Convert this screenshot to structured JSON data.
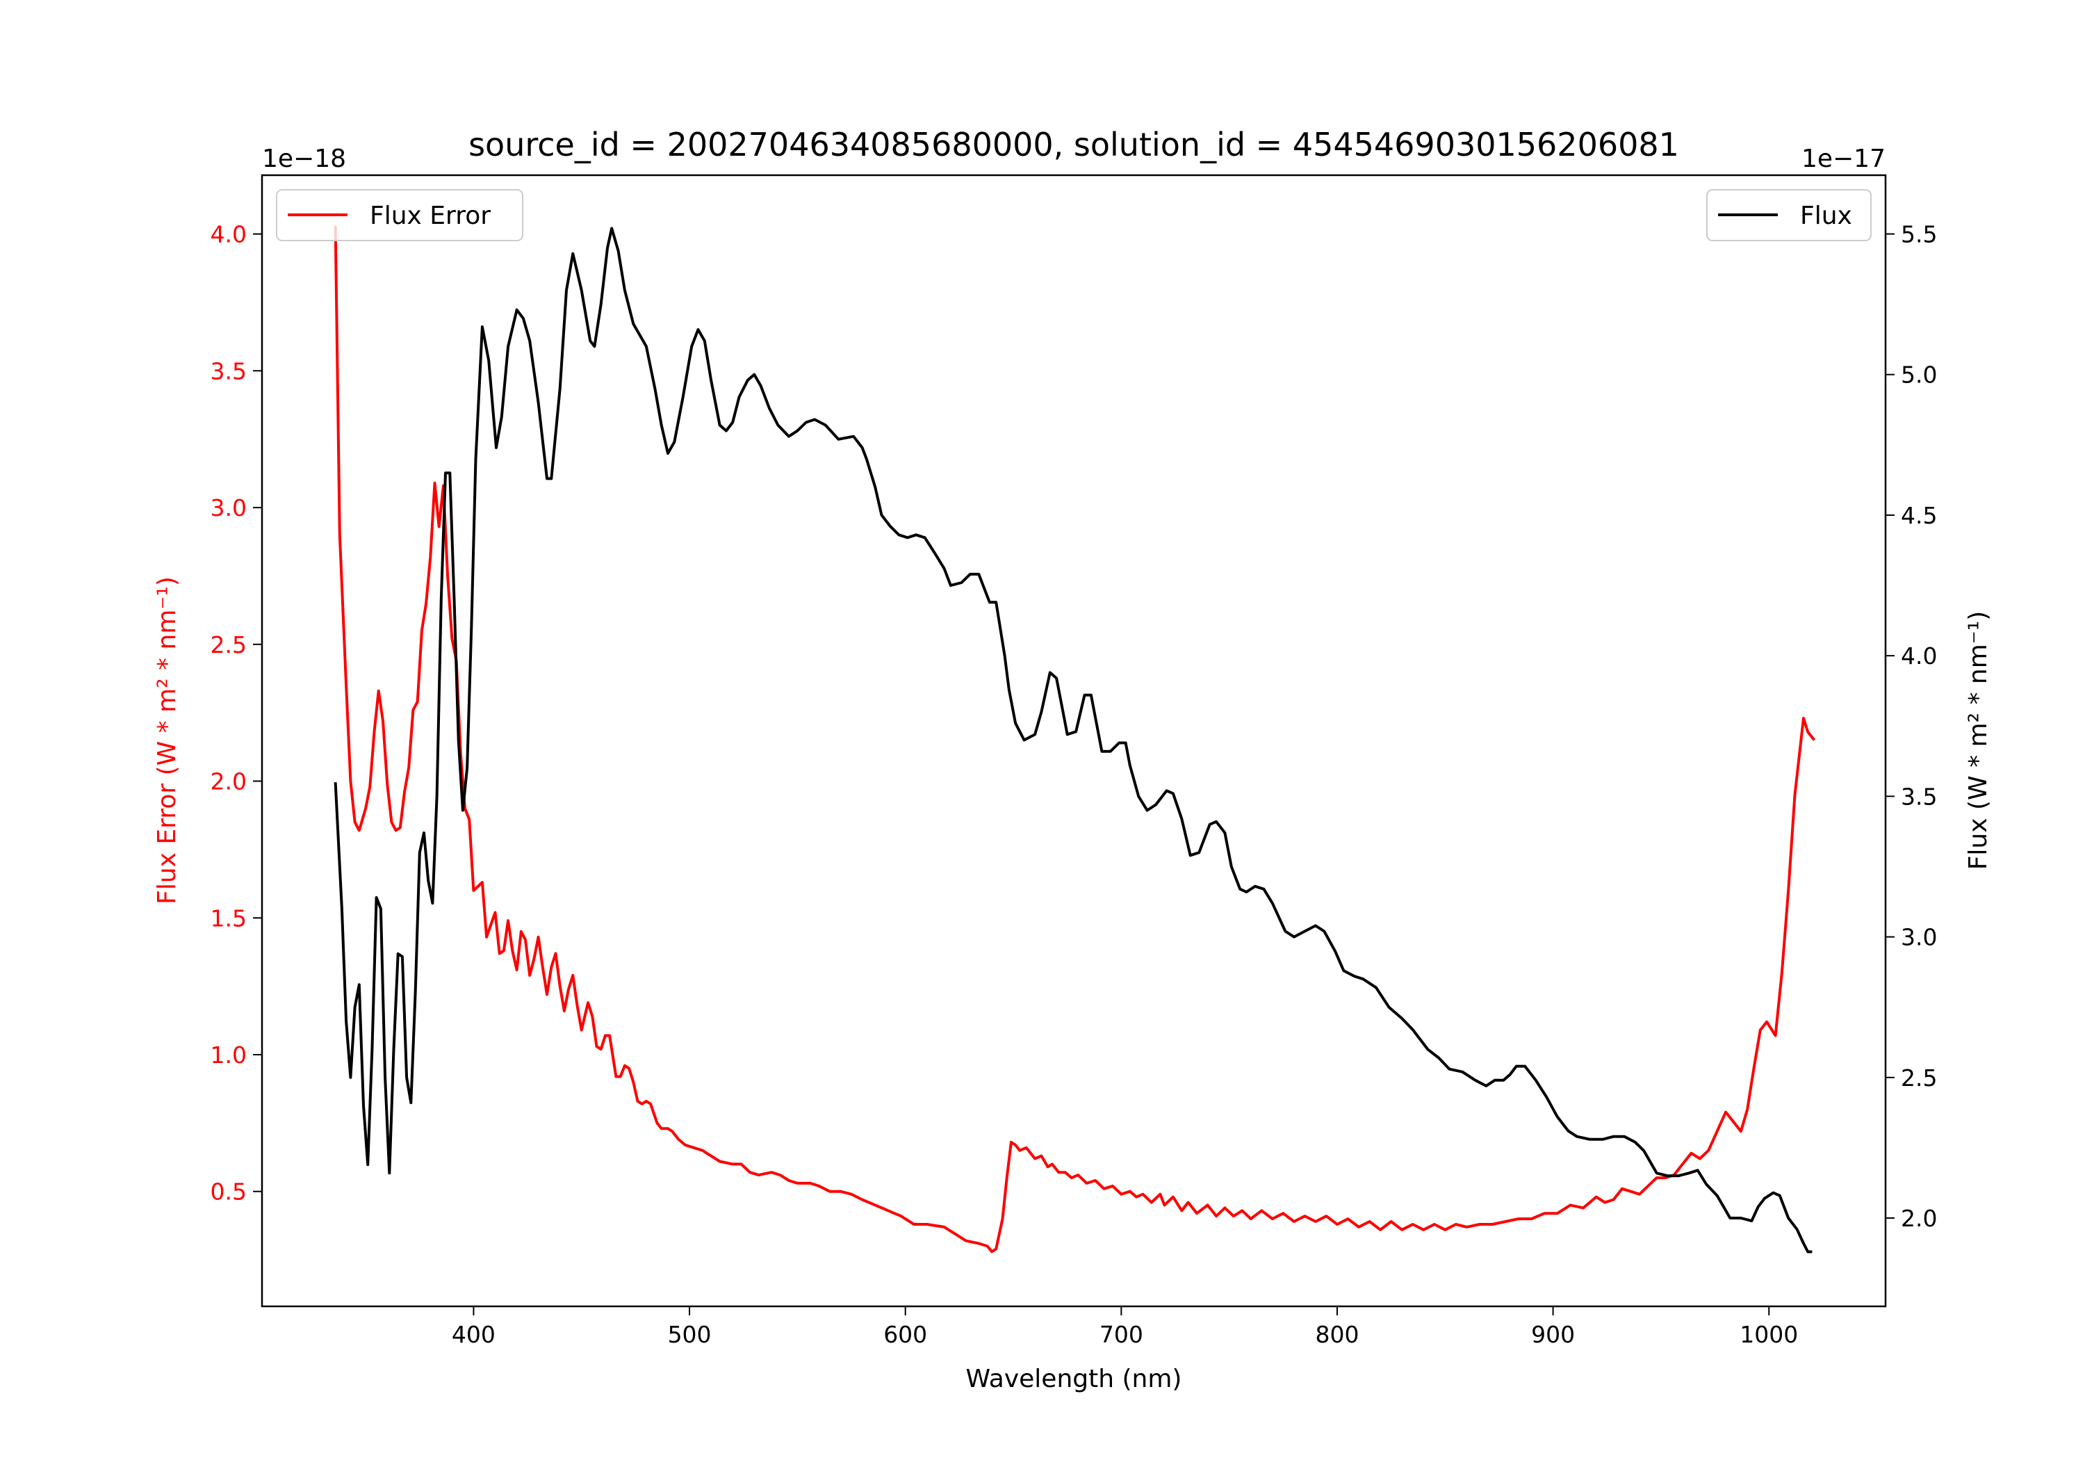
{
  "chart_data": {
    "type": "line",
    "title": "source_id = 2002704634085680000, solution_id = 4545469030156206081",
    "xlabel": "Wavelength (nm)",
    "ylabel_left": "Flux Error (W * m$^2$ * nm$^{-1}$)",
    "ylabel_left_display": "Flux Error (W * m² * nm⁻¹)",
    "ylabel_right_display": "Flux (W * m² * nm⁻¹)",
    "left_offset_label": "1e−18",
    "right_offset_label": "1e−17",
    "xlim": [
      302,
      1054
    ],
    "ylim_left": [
      0.08,
      4.215
    ],
    "ylim_right": [
      1.686,
      5.709
    ],
    "xticks": [
      400,
      500,
      600,
      700,
      800,
      900,
      1000
    ],
    "xtick_labels": [
      "400",
      "500",
      "600",
      "700",
      "800",
      "900",
      "1000"
    ],
    "yticks_left": [
      0.5,
      1.0,
      1.5,
      2.0,
      2.5,
      3.0,
      3.5,
      4.0
    ],
    "ytick_labels_left": [
      "0.5",
      "1.0",
      "1.5",
      "2.0",
      "2.5",
      "3.0",
      "3.5",
      "4.0"
    ],
    "yticks_right": [
      2.0,
      2.5,
      3.0,
      3.5,
      4.0,
      4.5,
      5.0,
      5.5
    ],
    "ytick_labels_right": [
      "2.0",
      "2.5",
      "3.0",
      "3.5",
      "4.0",
      "4.5",
      "5.0",
      "5.5"
    ],
    "grid": false,
    "colors": {
      "flux_error": "#ff0000",
      "flux": "#000000"
    },
    "series": [
      {
        "name": "Flux Error",
        "axis": "left",
        "legend_placement": "upper-left",
        "x": [
          336,
          338,
          341,
          343,
          345,
          347,
          350,
          352,
          354,
          356,
          358,
          360,
          362,
          364,
          366,
          368,
          370,
          372,
          374,
          376,
          378,
          380,
          382,
          384,
          386,
          388,
          390,
          392,
          394,
          396,
          398,
          400,
          404,
          406,
          410,
          412,
          414,
          416,
          418,
          420,
          422,
          424,
          426,
          428,
          430,
          432,
          434,
          436,
          438,
          440,
          442,
          444,
          446,
          448,
          450,
          453,
          455,
          457,
          459,
          461,
          463,
          466,
          468,
          470,
          472,
          474,
          476,
          478,
          480,
          482,
          485,
          487,
          490,
          492,
          495,
          498,
          502,
          506,
          510,
          514,
          520,
          524,
          528,
          532,
          538,
          542,
          546,
          550,
          556,
          560,
          565,
          570,
          575,
          580,
          586,
          592,
          598,
          604,
          610,
          618,
          624,
          628,
          634,
          638,
          640,
          642,
          645,
          647,
          649,
          651,
          653,
          656,
          658,
          660,
          663,
          666,
          668,
          671,
          674,
          677,
          680,
          684,
          688,
          692,
          696,
          700,
          704,
          707,
          710,
          714,
          718,
          720,
          724,
          728,
          731,
          735,
          740,
          744,
          748,
          752,
          756,
          760,
          765,
          770,
          775,
          780,
          785,
          790,
          795,
          800,
          805,
          810,
          815,
          820,
          825,
          830,
          835,
          840,
          845,
          850,
          855,
          860,
          866,
          872,
          878,
          884,
          890,
          896,
          902,
          908,
          914,
          920,
          924,
          928,
          932,
          936,
          940,
          944,
          948,
          952,
          956,
          960,
          964,
          968,
          972,
          976,
          980,
          984,
          987,
          990,
          993,
          996,
          999,
          1003,
          1006,
          1009,
          1012,
          1016,
          1018,
          1021
        ],
        "y": [
          4.03,
          2.9,
          2.35,
          2.0,
          1.85,
          1.82,
          1.9,
          1.98,
          2.18,
          2.33,
          2.22,
          1.99,
          1.85,
          1.82,
          1.83,
          1.96,
          2.05,
          2.26,
          2.29,
          2.55,
          2.65,
          2.82,
          3.09,
          2.93,
          3.08,
          2.75,
          2.52,
          2.44,
          2.1,
          1.9,
          1.86,
          1.6,
          1.63,
          1.43,
          1.52,
          1.37,
          1.38,
          1.49,
          1.38,
          1.31,
          1.45,
          1.42,
          1.29,
          1.35,
          1.43,
          1.32,
          1.22,
          1.32,
          1.37,
          1.25,
          1.16,
          1.24,
          1.29,
          1.18,
          1.09,
          1.19,
          1.14,
          1.03,
          1.02,
          1.07,
          1.07,
          0.92,
          0.92,
          0.96,
          0.95,
          0.9,
          0.83,
          0.82,
          0.83,
          0.82,
          0.75,
          0.73,
          0.73,
          0.72,
          0.69,
          0.67,
          0.66,
          0.65,
          0.63,
          0.61,
          0.6,
          0.6,
          0.57,
          0.56,
          0.57,
          0.56,
          0.54,
          0.53,
          0.53,
          0.52,
          0.5,
          0.5,
          0.49,
          0.47,
          0.45,
          0.43,
          0.41,
          0.38,
          0.38,
          0.37,
          0.34,
          0.32,
          0.31,
          0.3,
          0.28,
          0.29,
          0.4,
          0.55,
          0.68,
          0.67,
          0.65,
          0.66,
          0.64,
          0.62,
          0.63,
          0.59,
          0.6,
          0.57,
          0.57,
          0.55,
          0.56,
          0.53,
          0.54,
          0.51,
          0.52,
          0.49,
          0.5,
          0.48,
          0.49,
          0.46,
          0.49,
          0.45,
          0.48,
          0.43,
          0.46,
          0.42,
          0.45,
          0.41,
          0.44,
          0.41,
          0.43,
          0.4,
          0.43,
          0.4,
          0.42,
          0.39,
          0.41,
          0.39,
          0.41,
          0.38,
          0.4,
          0.37,
          0.39,
          0.36,
          0.39,
          0.36,
          0.38,
          0.36,
          0.38,
          0.36,
          0.38,
          0.37,
          0.38,
          0.38,
          0.39,
          0.4,
          0.4,
          0.42,
          0.42,
          0.45,
          0.44,
          0.48,
          0.46,
          0.47,
          0.51,
          0.5,
          0.49,
          0.52,
          0.55,
          0.55,
          0.56,
          0.6,
          0.64,
          0.62,
          0.65,
          0.72,
          0.79,
          0.75,
          0.72,
          0.8,
          0.95,
          1.09,
          1.12,
          1.07,
          1.3,
          1.6,
          1.95,
          2.23,
          2.18,
          2.15
        ]
      },
      {
        "name": "Flux",
        "axis": "right",
        "legend_placement": "upper-right",
        "x": [
          336,
          339,
          341,
          343,
          345,
          347,
          349,
          351,
          353,
          355,
          357,
          359,
          361,
          363,
          365,
          367,
          369,
          371,
          373,
          375,
          377,
          379,
          381,
          383,
          385,
          387,
          389,
          391,
          393,
          395,
          397,
          399,
          401,
          404,
          407,
          410.5,
          413,
          416,
          420,
          423,
          426,
          430,
          434,
          436,
          440,
          443,
          446,
          450,
          454,
          456,
          459,
          462,
          464,
          467,
          470,
          474,
          480,
          484,
          487,
          490,
          493,
          497,
          501,
          504,
          507,
          510,
          514,
          517,
          520,
          523,
          527,
          530,
          533,
          537,
          541,
          546,
          550,
          554,
          558,
          563,
          569,
          576,
          580,
          582,
          586,
          589,
          593,
          597,
          601,
          605,
          609,
          614,
          618,
          621,
          626,
          630,
          634,
          639,
          642,
          646,
          648,
          651,
          655,
          660,
          663,
          667,
          670,
          673,
          675,
          679,
          683,
          686,
          691,
          695,
          699,
          702,
          704,
          708,
          712,
          716,
          721,
          724,
          728,
          732,
          736,
          741,
          744,
          748,
          751,
          755,
          758,
          762,
          766,
          770,
          776,
          780,
          785,
          790,
          794,
          799,
          803,
          808,
          812,
          818,
          824,
          830,
          835,
          842,
          847,
          852,
          858,
          864,
          869,
          873,
          877,
          880,
          883,
          887,
          892,
          897,
          902,
          907,
          911,
          917,
          923,
          928,
          933,
          938,
          942,
          945,
          948,
          953,
          958,
          963,
          967,
          971,
          976,
          979,
          982,
          987,
          992,
          995,
          998,
          1002,
          1005,
          1009,
          1013,
          1016,
          1018,
          1020
        ],
        "y": [
          3.55,
          3.1,
          2.7,
          2.5,
          2.75,
          2.83,
          2.4,
          2.19,
          2.6,
          3.14,
          3.1,
          2.5,
          2.16,
          2.6,
          2.94,
          2.93,
          2.5,
          2.41,
          2.8,
          3.3,
          3.37,
          3.2,
          3.12,
          3.5,
          4.2,
          4.65,
          4.65,
          4.2,
          3.7,
          3.45,
          3.6,
          4.1,
          4.7,
          5.17,
          5.05,
          4.74,
          4.85,
          5.1,
          5.23,
          5.2,
          5.12,
          4.9,
          4.63,
          4.63,
          4.95,
          5.3,
          5.43,
          5.3,
          5.12,
          5.1,
          5.25,
          5.45,
          5.52,
          5.44,
          5.3,
          5.18,
          5.1,
          4.95,
          4.82,
          4.72,
          4.76,
          4.92,
          5.1,
          5.16,
          5.12,
          4.98,
          4.82,
          4.8,
          4.83,
          4.92,
          4.98,
          5.0,
          4.96,
          4.88,
          4.82,
          4.78,
          4.8,
          4.83,
          4.84,
          4.82,
          4.77,
          4.78,
          4.74,
          4.7,
          4.6,
          4.5,
          4.46,
          4.43,
          4.42,
          4.43,
          4.42,
          4.36,
          4.31,
          4.25,
          4.26,
          4.29,
          4.29,
          4.19,
          4.19,
          4.0,
          3.88,
          3.76,
          3.7,
          3.72,
          3.8,
          3.94,
          3.92,
          3.8,
          3.72,
          3.73,
          3.86,
          3.86,
          3.66,
          3.66,
          3.69,
          3.69,
          3.61,
          3.5,
          3.45,
          3.47,
          3.52,
          3.51,
          3.42,
          3.29,
          3.3,
          3.4,
          3.41,
          3.37,
          3.25,
          3.17,
          3.16,
          3.18,
          3.17,
          3.12,
          3.02,
          3.0,
          3.02,
          3.04,
          3.02,
          2.95,
          2.88,
          2.86,
          2.85,
          2.82,
          2.75,
          2.71,
          2.67,
          2.6,
          2.57,
          2.53,
          2.52,
          2.49,
          2.47,
          2.49,
          2.49,
          2.51,
          2.54,
          2.54,
          2.49,
          2.43,
          2.36,
          2.31,
          2.29,
          2.28,
          2.28,
          2.29,
          2.29,
          2.27,
          2.24,
          2.2,
          2.16,
          2.15,
          2.15,
          2.16,
          2.17,
          2.12,
          2.08,
          2.04,
          2.0,
          2.0,
          1.99,
          2.04,
          2.07,
          2.09,
          2.08,
          2.0,
          1.96,
          1.91,
          1.88,
          1.88
        ]
      }
    ]
  }
}
